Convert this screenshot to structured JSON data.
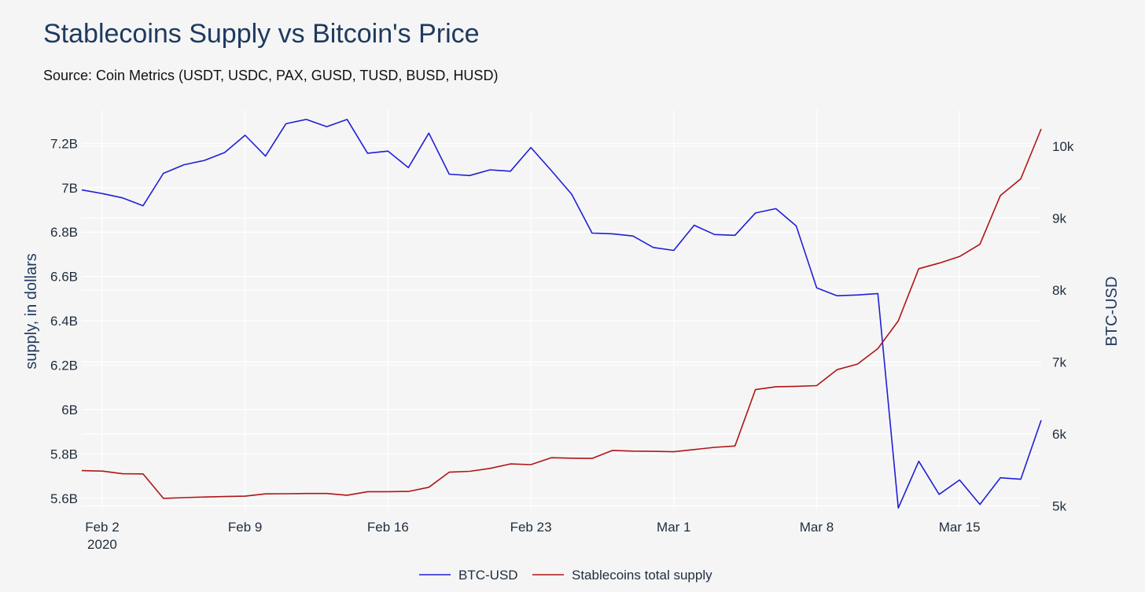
{
  "title": "Stablecoins Supply vs Bitcoin's Price",
  "subtitle": "Source: Coin Metrics (USDT, USDC, PAX, GUSD, TUSD, BUSD, HUSD)",
  "colors": {
    "btc": "#1f1fd6",
    "supply": "#b01515",
    "grid": "#ffffff",
    "background": "#f5f5f5"
  },
  "chart_data": {
    "type": "line",
    "title": "Stablecoins Supply vs Bitcoin's Price",
    "subtitle": "Source: Coin Metrics (USDT, USDC, PAX, GUSD, TUSD, BUSD, HUSD)",
    "x": [
      "2020-02-01",
      "2020-02-02",
      "2020-02-03",
      "2020-02-04",
      "2020-02-05",
      "2020-02-06",
      "2020-02-07",
      "2020-02-08",
      "2020-02-09",
      "2020-02-10",
      "2020-02-11",
      "2020-02-12",
      "2020-02-13",
      "2020-02-14",
      "2020-02-15",
      "2020-02-16",
      "2020-02-17",
      "2020-02-18",
      "2020-02-19",
      "2020-02-20",
      "2020-02-21",
      "2020-02-22",
      "2020-02-23",
      "2020-02-24",
      "2020-02-25",
      "2020-02-26",
      "2020-02-27",
      "2020-02-28",
      "2020-02-29",
      "2020-03-01",
      "2020-03-02",
      "2020-03-03",
      "2020-03-04",
      "2020-03-05",
      "2020-03-06",
      "2020-03-07",
      "2020-03-08",
      "2020-03-09",
      "2020-03-10",
      "2020-03-11",
      "2020-03-12",
      "2020-03-13",
      "2020-03-14",
      "2020-03-15",
      "2020-03-16",
      "2020-03-17",
      "2020-03-18",
      "2020-03-19"
    ],
    "xticks": [
      {
        "date": "2020-02-02",
        "label": "Feb 2",
        "sublabel": "2020"
      },
      {
        "date": "2020-02-09",
        "label": "Feb 9",
        "sublabel": ""
      },
      {
        "date": "2020-02-16",
        "label": "Feb 16",
        "sublabel": ""
      },
      {
        "date": "2020-02-23",
        "label": "Feb 23",
        "sublabel": ""
      },
      {
        "date": "2020-03-01",
        "label": "Mar 1",
        "sublabel": ""
      },
      {
        "date": "2020-03-08",
        "label": "Mar 8",
        "sublabel": ""
      },
      {
        "date": "2020-03-15",
        "label": "Mar 15",
        "sublabel": ""
      }
    ],
    "y_left": {
      "label": "supply, in dollars",
      "range": [
        5.55,
        7.35
      ],
      "ticks": [
        5.6,
        5.8,
        6.0,
        6.2,
        6.4,
        6.6,
        6.8,
        7.0,
        7.2
      ],
      "tick_labels": [
        "5.6B",
        "5.8B",
        "6B",
        "6.2B",
        "6.4B",
        "6.6B",
        "6.8B",
        "7B",
        "7.2B"
      ]
    },
    "y_right": {
      "label": "BTC-USD",
      "range": [
        4950,
        10500
      ],
      "ticks": [
        5000,
        6000,
        7000,
        8000,
        9000,
        10000
      ],
      "tick_labels": [
        "5k",
        "6k",
        "7k",
        "8k",
        "9k",
        "10k"
      ]
    },
    "series": [
      {
        "name": "BTC-USD",
        "axis": "right",
        "values": [
          9390,
          9340,
          9280,
          9170,
          9620,
          9740,
          9800,
          9910,
          10150,
          9860,
          10310,
          10370,
          10270,
          10370,
          9900,
          9930,
          9700,
          10180,
          9610,
          9590,
          9670,
          9650,
          9980,
          9660,
          9330,
          8790,
          8780,
          8750,
          8590,
          8550,
          8900,
          8770,
          8760,
          9070,
          9130,
          8890,
          8030,
          7920,
          7930,
          7950,
          4970,
          5620,
          5160,
          5360,
          5020,
          5390,
          5370,
          6190
        ]
      },
      {
        "name": "Stablecoins total supply",
        "axis": "left",
        "values": [
          5.725,
          5.723,
          5.711,
          5.71,
          5.6,
          5.603,
          5.606,
          5.608,
          5.61,
          5.62,
          5.621,
          5.622,
          5.622,
          5.614,
          5.63,
          5.63,
          5.631,
          5.65,
          5.718,
          5.722,
          5.735,
          5.755,
          5.752,
          5.783,
          5.781,
          5.78,
          5.816,
          5.813,
          5.812,
          5.81,
          5.82,
          5.83,
          5.836,
          6.09,
          6.103,
          6.105,
          6.108,
          6.18,
          6.205,
          6.275,
          6.4,
          6.635,
          6.66,
          6.69,
          6.745,
          6.965,
          7.04,
          7.265
        ]
      }
    ],
    "legend": {
      "placement": "bottom-center",
      "entries": [
        "BTC-USD",
        "Stablecoins total supply"
      ]
    },
    "grid": true
  }
}
